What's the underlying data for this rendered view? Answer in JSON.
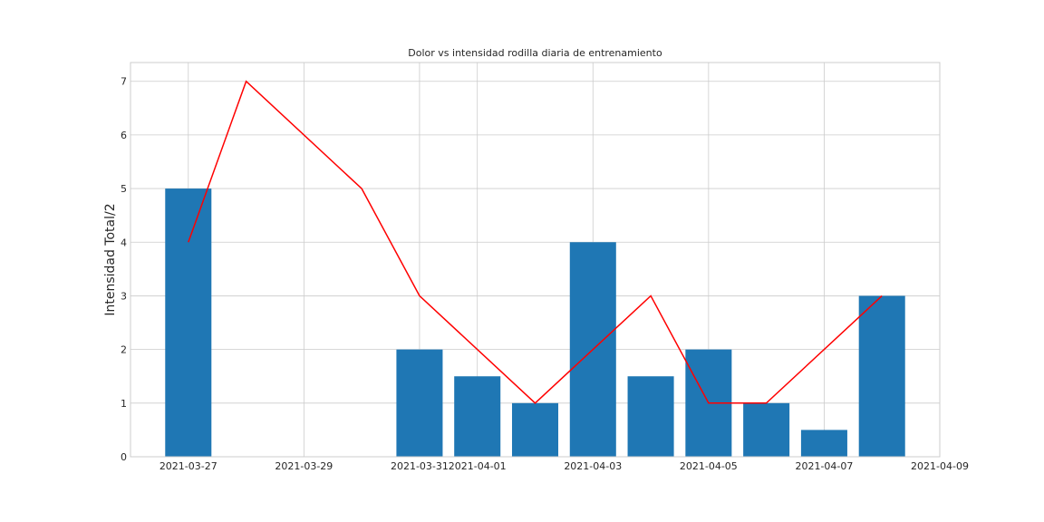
{
  "chart_data": {
    "type": "bar",
    "title": "Dolor vs intensidad rodilla diaria de entrenamiento",
    "xlabel": "",
    "ylabel": "Intensidad Total/2",
    "ylim": [
      0,
      7.35
    ],
    "xlim": [
      "2021-03-26",
      "2021-04-09"
    ],
    "grid": true,
    "legend": "none",
    "x_tick_labels": [
      "2021-03-27",
      "2021-03-29",
      "2021-03-31",
      "2021-04-01",
      "2021-04-03",
      "2021-04-05",
      "2021-04-07",
      "2021-04-09"
    ],
    "y_ticks": [
      0,
      1,
      2,
      3,
      4,
      5,
      6,
      7
    ],
    "bars": {
      "color": "#1f77b4",
      "x": [
        "2021-03-27",
        "2021-03-31",
        "2021-04-01",
        "2021-04-02",
        "2021-04-03",
        "2021-04-04",
        "2021-04-05",
        "2021-04-06",
        "2021-04-07",
        "2021-04-08"
      ],
      "values": [
        5,
        2,
        1.5,
        1,
        4,
        1.5,
        2,
        1,
        0.5,
        3
      ]
    },
    "line": {
      "color": "#ff0000",
      "x": [
        "2021-03-27",
        "2021-03-28",
        "2021-03-30",
        "2021-03-31",
        "2021-04-02",
        "2021-04-04",
        "2021-04-05",
        "2021-04-06",
        "2021-04-08"
      ],
      "values": [
        4,
        7,
        5,
        3,
        1,
        3,
        1,
        1,
        3
      ]
    }
  }
}
